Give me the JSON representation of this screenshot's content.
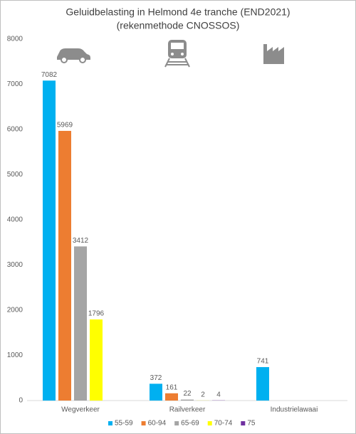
{
  "chart_data": {
    "type": "bar",
    "title": "Geluidbelasting in Helmond 4e tranche (END2021)",
    "subtitle": "(rekenmethode CNOSSOS)",
    "categories": [
      "Wegverkeer",
      "Railverkeer",
      "Industrielawaai"
    ],
    "series": [
      {
        "name": "55-59",
        "color": "#00b0f0",
        "values": [
          7082,
          372,
          741
        ]
      },
      {
        "name": "60-94",
        "color": "#ed7d31",
        "values": [
          5969,
          161,
          null
        ]
      },
      {
        "name": "65-69",
        "color": "#a5a5a5",
        "values": [
          3412,
          22,
          null
        ]
      },
      {
        "name": "70-74",
        "color": "#ffff00",
        "values": [
          1796,
          2,
          null
        ]
      },
      {
        "name": "75",
        "color": "#7030a0",
        "values": [
          null,
          4,
          null
        ]
      }
    ],
    "ylim": [
      0,
      8000
    ],
    "yticks": [
      0,
      1000,
      2000,
      3000,
      4000,
      5000,
      6000,
      7000,
      8000
    ],
    "grid": false,
    "legend": "bottom"
  }
}
